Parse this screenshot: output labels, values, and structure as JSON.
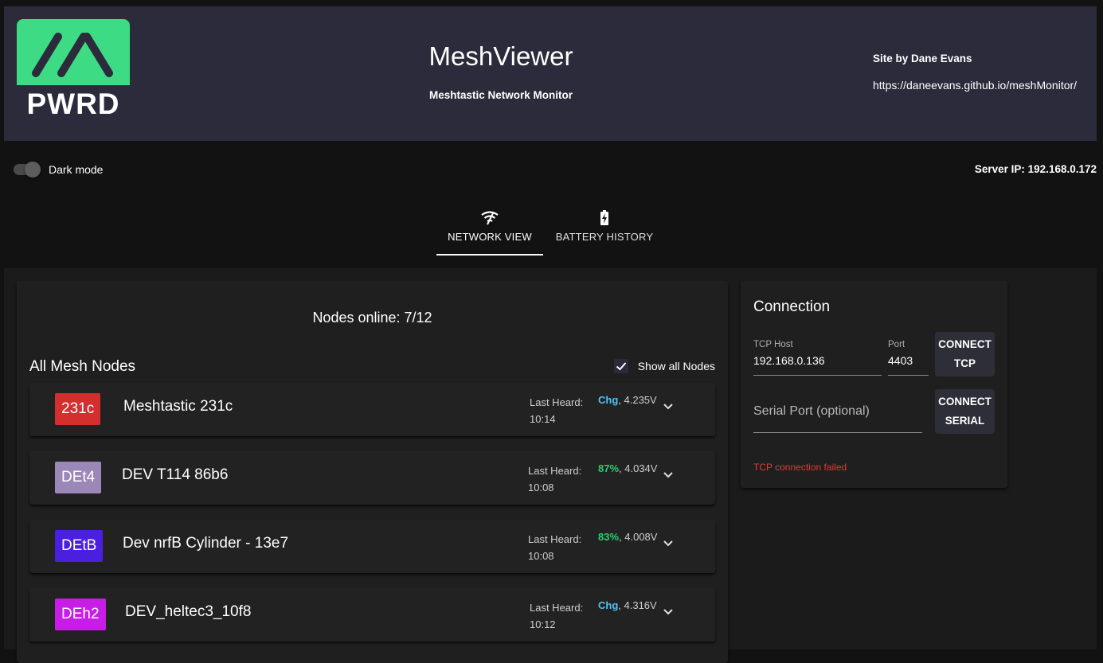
{
  "header": {
    "logo_text": "PWRD",
    "logo_color": "#3ddc84",
    "title": "MeshViewer",
    "subtitle": "Meshtastic Network Monitor",
    "credit": "Site by Dane Evans",
    "url": "https://daneevans.github.io/meshMonitor/"
  },
  "toolbar": {
    "dark_mode_label": "Dark mode",
    "server_ip": "Server IP: 192.168.0.172"
  },
  "tabs": [
    {
      "label": "NETWORK VIEW",
      "icon": "wifi-icon",
      "active": true
    },
    {
      "label": "BATTERY HISTORY",
      "icon": "battery-charging-icon",
      "active": false
    }
  ],
  "nodes_panel": {
    "online_text": "Nodes online: 7/12",
    "heading": "All Mesh Nodes",
    "show_all_label": "Show all Nodes",
    "show_all_checked": true,
    "nodes": [
      {
        "badge": "231c",
        "badge_color": "#d32f2f",
        "name": "Meshtastic 231c",
        "heard_label": "Last Heard:",
        "heard_time": "10:14",
        "battery_status": "Chg",
        "battery_status_color": "#4fc3f7",
        "voltage": ", 4.235V"
      },
      {
        "badge": "DEt4",
        "badge_color": "#9c88b8",
        "name": "DEV T114 86b6",
        "heard_label": "Last Heard:",
        "heard_time": "10:08",
        "battery_status": "87%",
        "battery_status_color": "#2ecc71",
        "voltage": ", 4.034V"
      },
      {
        "badge": "DEtB",
        "badge_color": "#4a1fe0",
        "name": "Dev nrfB Cylinder - 13e7",
        "heard_label": "Last Heard:",
        "heard_time": "10:08",
        "battery_status": "83%",
        "battery_status_color": "#2ecc71",
        "voltage": ", 4.008V"
      },
      {
        "badge": "DEh2",
        "badge_color": "#c81de6",
        "name": "DEV_heltec3_10f8",
        "heard_label": "Last Heard:",
        "heard_time": "10:12",
        "battery_status": "Chg",
        "battery_status_color": "#4fc3f7",
        "voltage": ", 4.316V"
      }
    ]
  },
  "connection": {
    "title": "Connection",
    "tcp_host_label": "TCP Host",
    "tcp_host_value": "192.168.0.136",
    "port_label": "Port",
    "port_value": "4403",
    "connect_tcp_line1": "CONNECT",
    "connect_tcp_line2": "TCP",
    "serial_placeholder": "Serial Port (optional)",
    "connect_serial_line1": "CONNECT",
    "connect_serial_line2": "SERIAL",
    "error_text": "TCP connection failed"
  }
}
